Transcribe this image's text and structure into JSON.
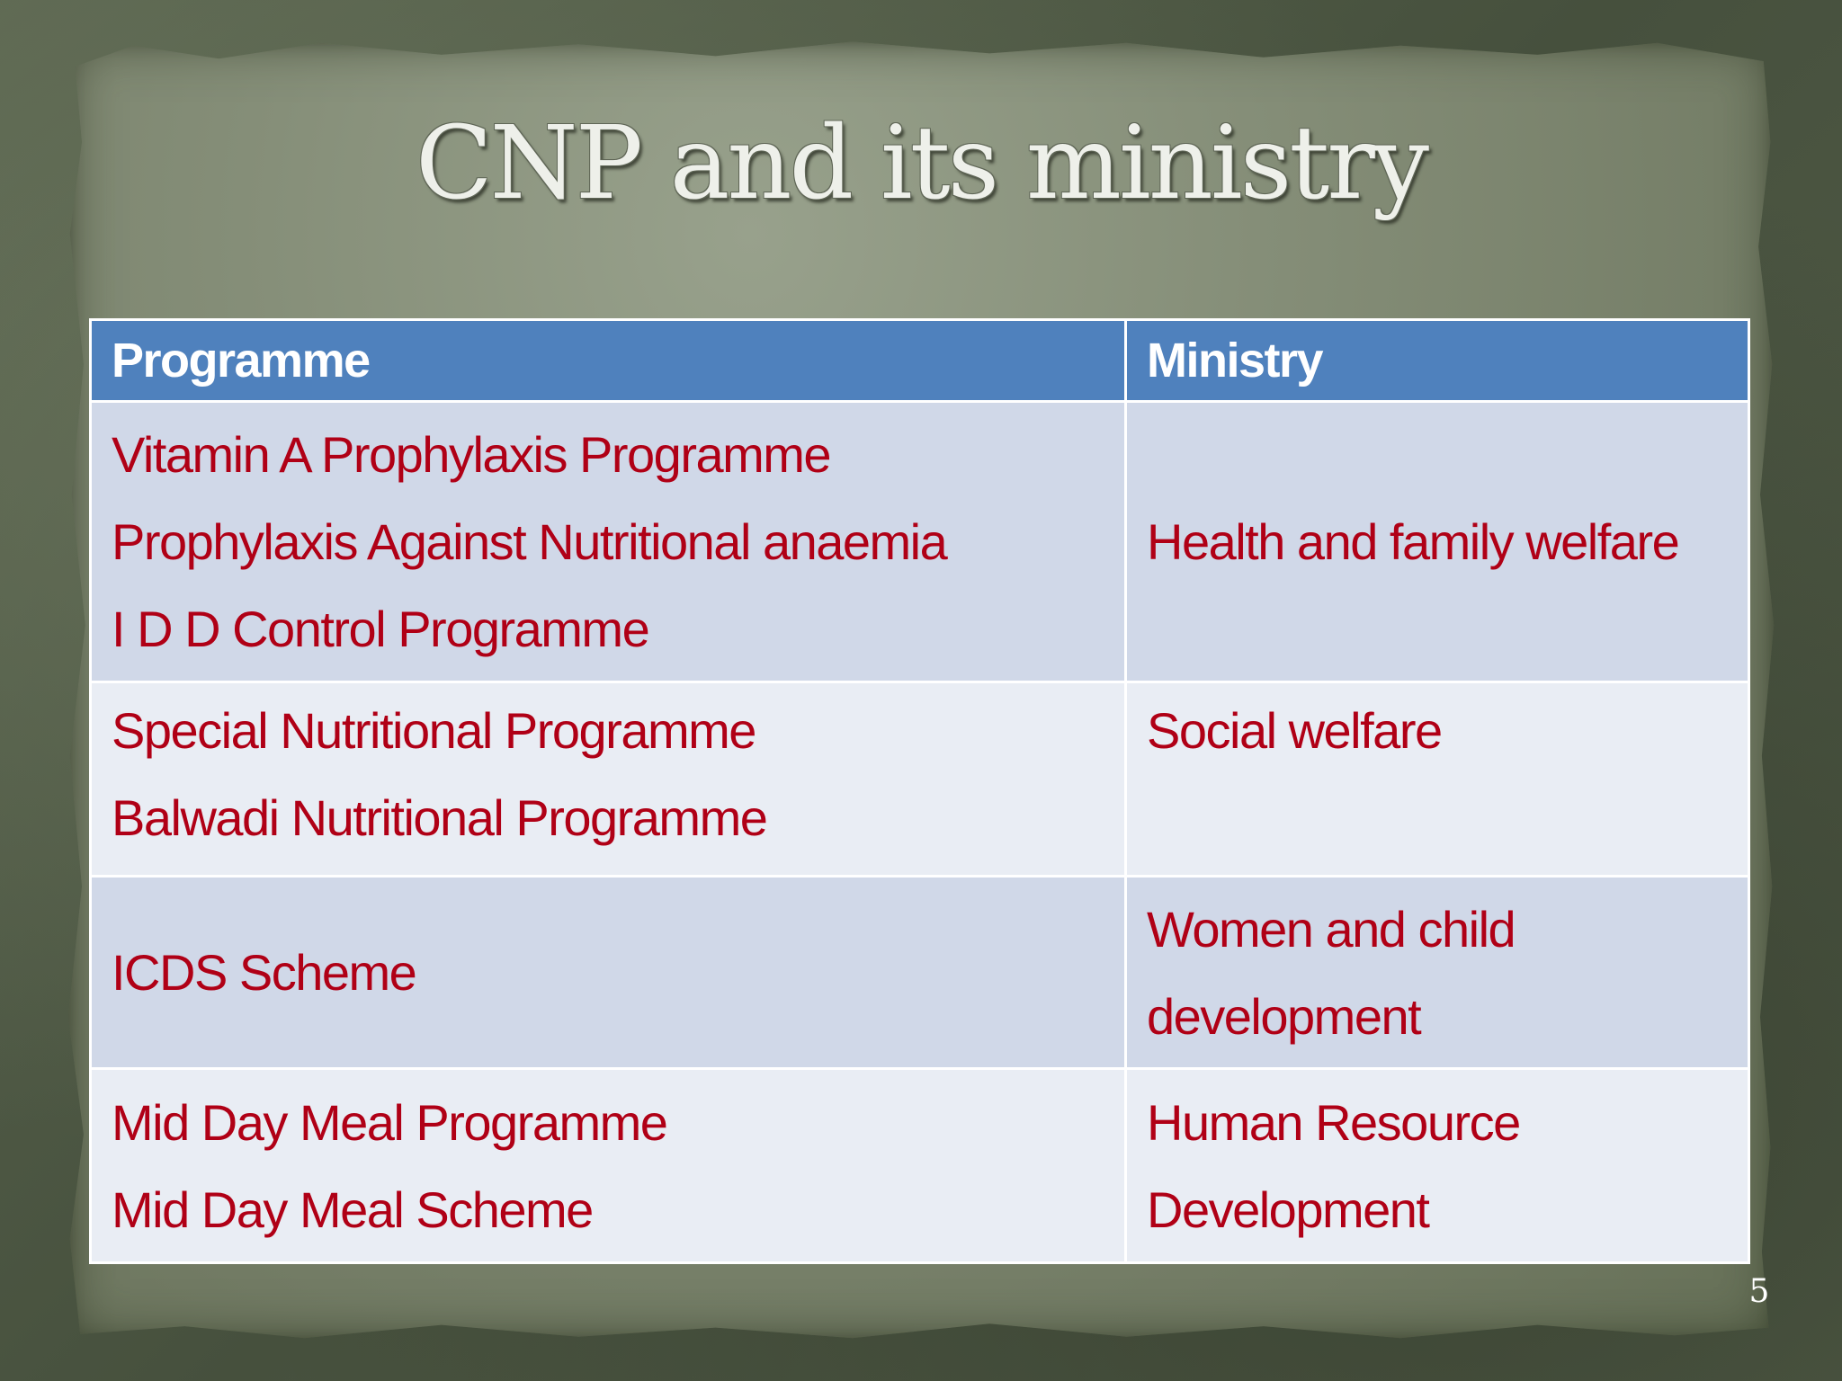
{
  "slide": {
    "title": "CNP and its ministry",
    "slide_number": "5"
  },
  "table": {
    "headers": [
      "Programme",
      "Ministry"
    ],
    "rows": [
      {
        "programmes": [
          "Vitamin A Prophylaxis Programme",
          "Prophylaxis Against Nutritional anaemia",
          "I D D Control Programme"
        ],
        "ministry": [
          "Health and family welfare"
        ]
      },
      {
        "programmes": [
          "Special Nutritional Programme",
          "Balwadi Nutritional Programme"
        ],
        "ministry": [
          "Social welfare"
        ]
      },
      {
        "programmes": [
          "ICDS Scheme"
        ],
        "ministry": [
          "Women and child",
          "development"
        ]
      },
      {
        "programmes": [
          "Mid  Day Meal Programme",
          "Mid  Day Meal Scheme"
        ],
        "ministry": [
          "Human Resource",
          "Development"
        ]
      }
    ]
  },
  "colors": {
    "header_bg": "#4f81bd",
    "row_odd_bg": "#d0d8e8",
    "row_even_bg": "#e9edf4",
    "text_red": "#b00016",
    "title_color": "#eef0ea"
  }
}
